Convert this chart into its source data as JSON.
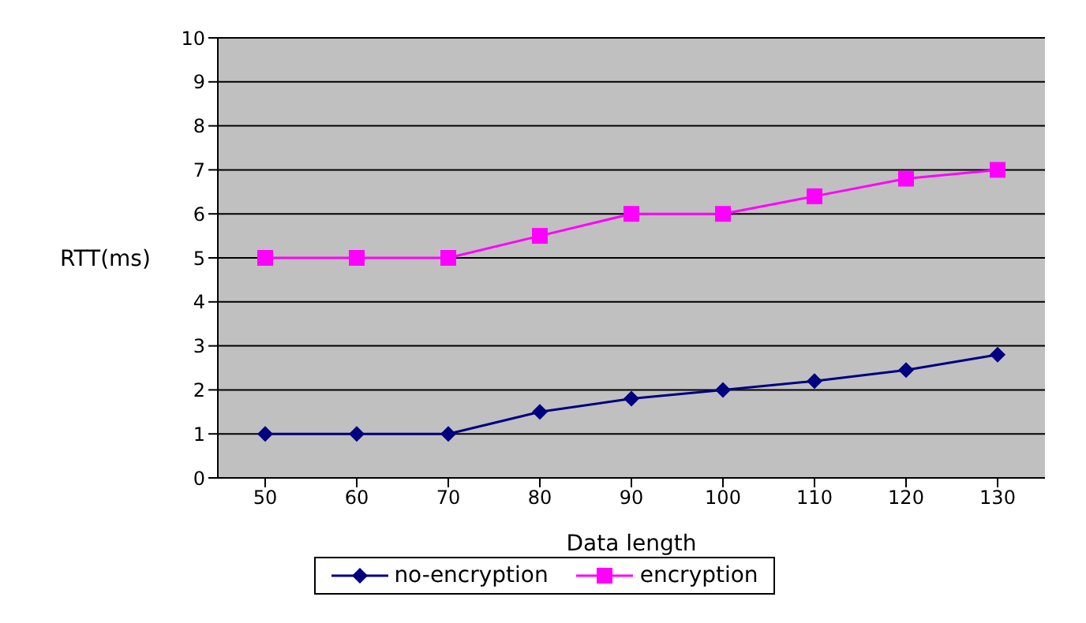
{
  "chart_data": {
    "type": "line",
    "xlabel": "Data length",
    "ylabel": "RTT(ms)",
    "categories": [
      "50",
      "60",
      "70",
      "80",
      "90",
      "100",
      "110",
      "120",
      "130"
    ],
    "series": [
      {
        "name": "no-encryption",
        "color": "#000080",
        "marker": "diamond",
        "values": [
          1,
          1,
          1,
          1.5,
          1.8,
          2,
          2.2,
          2.45,
          2.8
        ]
      },
      {
        "name": "encryption",
        "color": "#ff00ff",
        "marker": "square",
        "values": [
          5,
          5,
          5,
          5.5,
          6,
          6,
          6.4,
          6.8,
          7
        ]
      }
    ],
    "ylim": [
      0,
      10
    ],
    "yticks": [
      0,
      1,
      2,
      3,
      4,
      5,
      6,
      7,
      8,
      9,
      10
    ],
    "grid": "y",
    "legend": "bottom"
  }
}
